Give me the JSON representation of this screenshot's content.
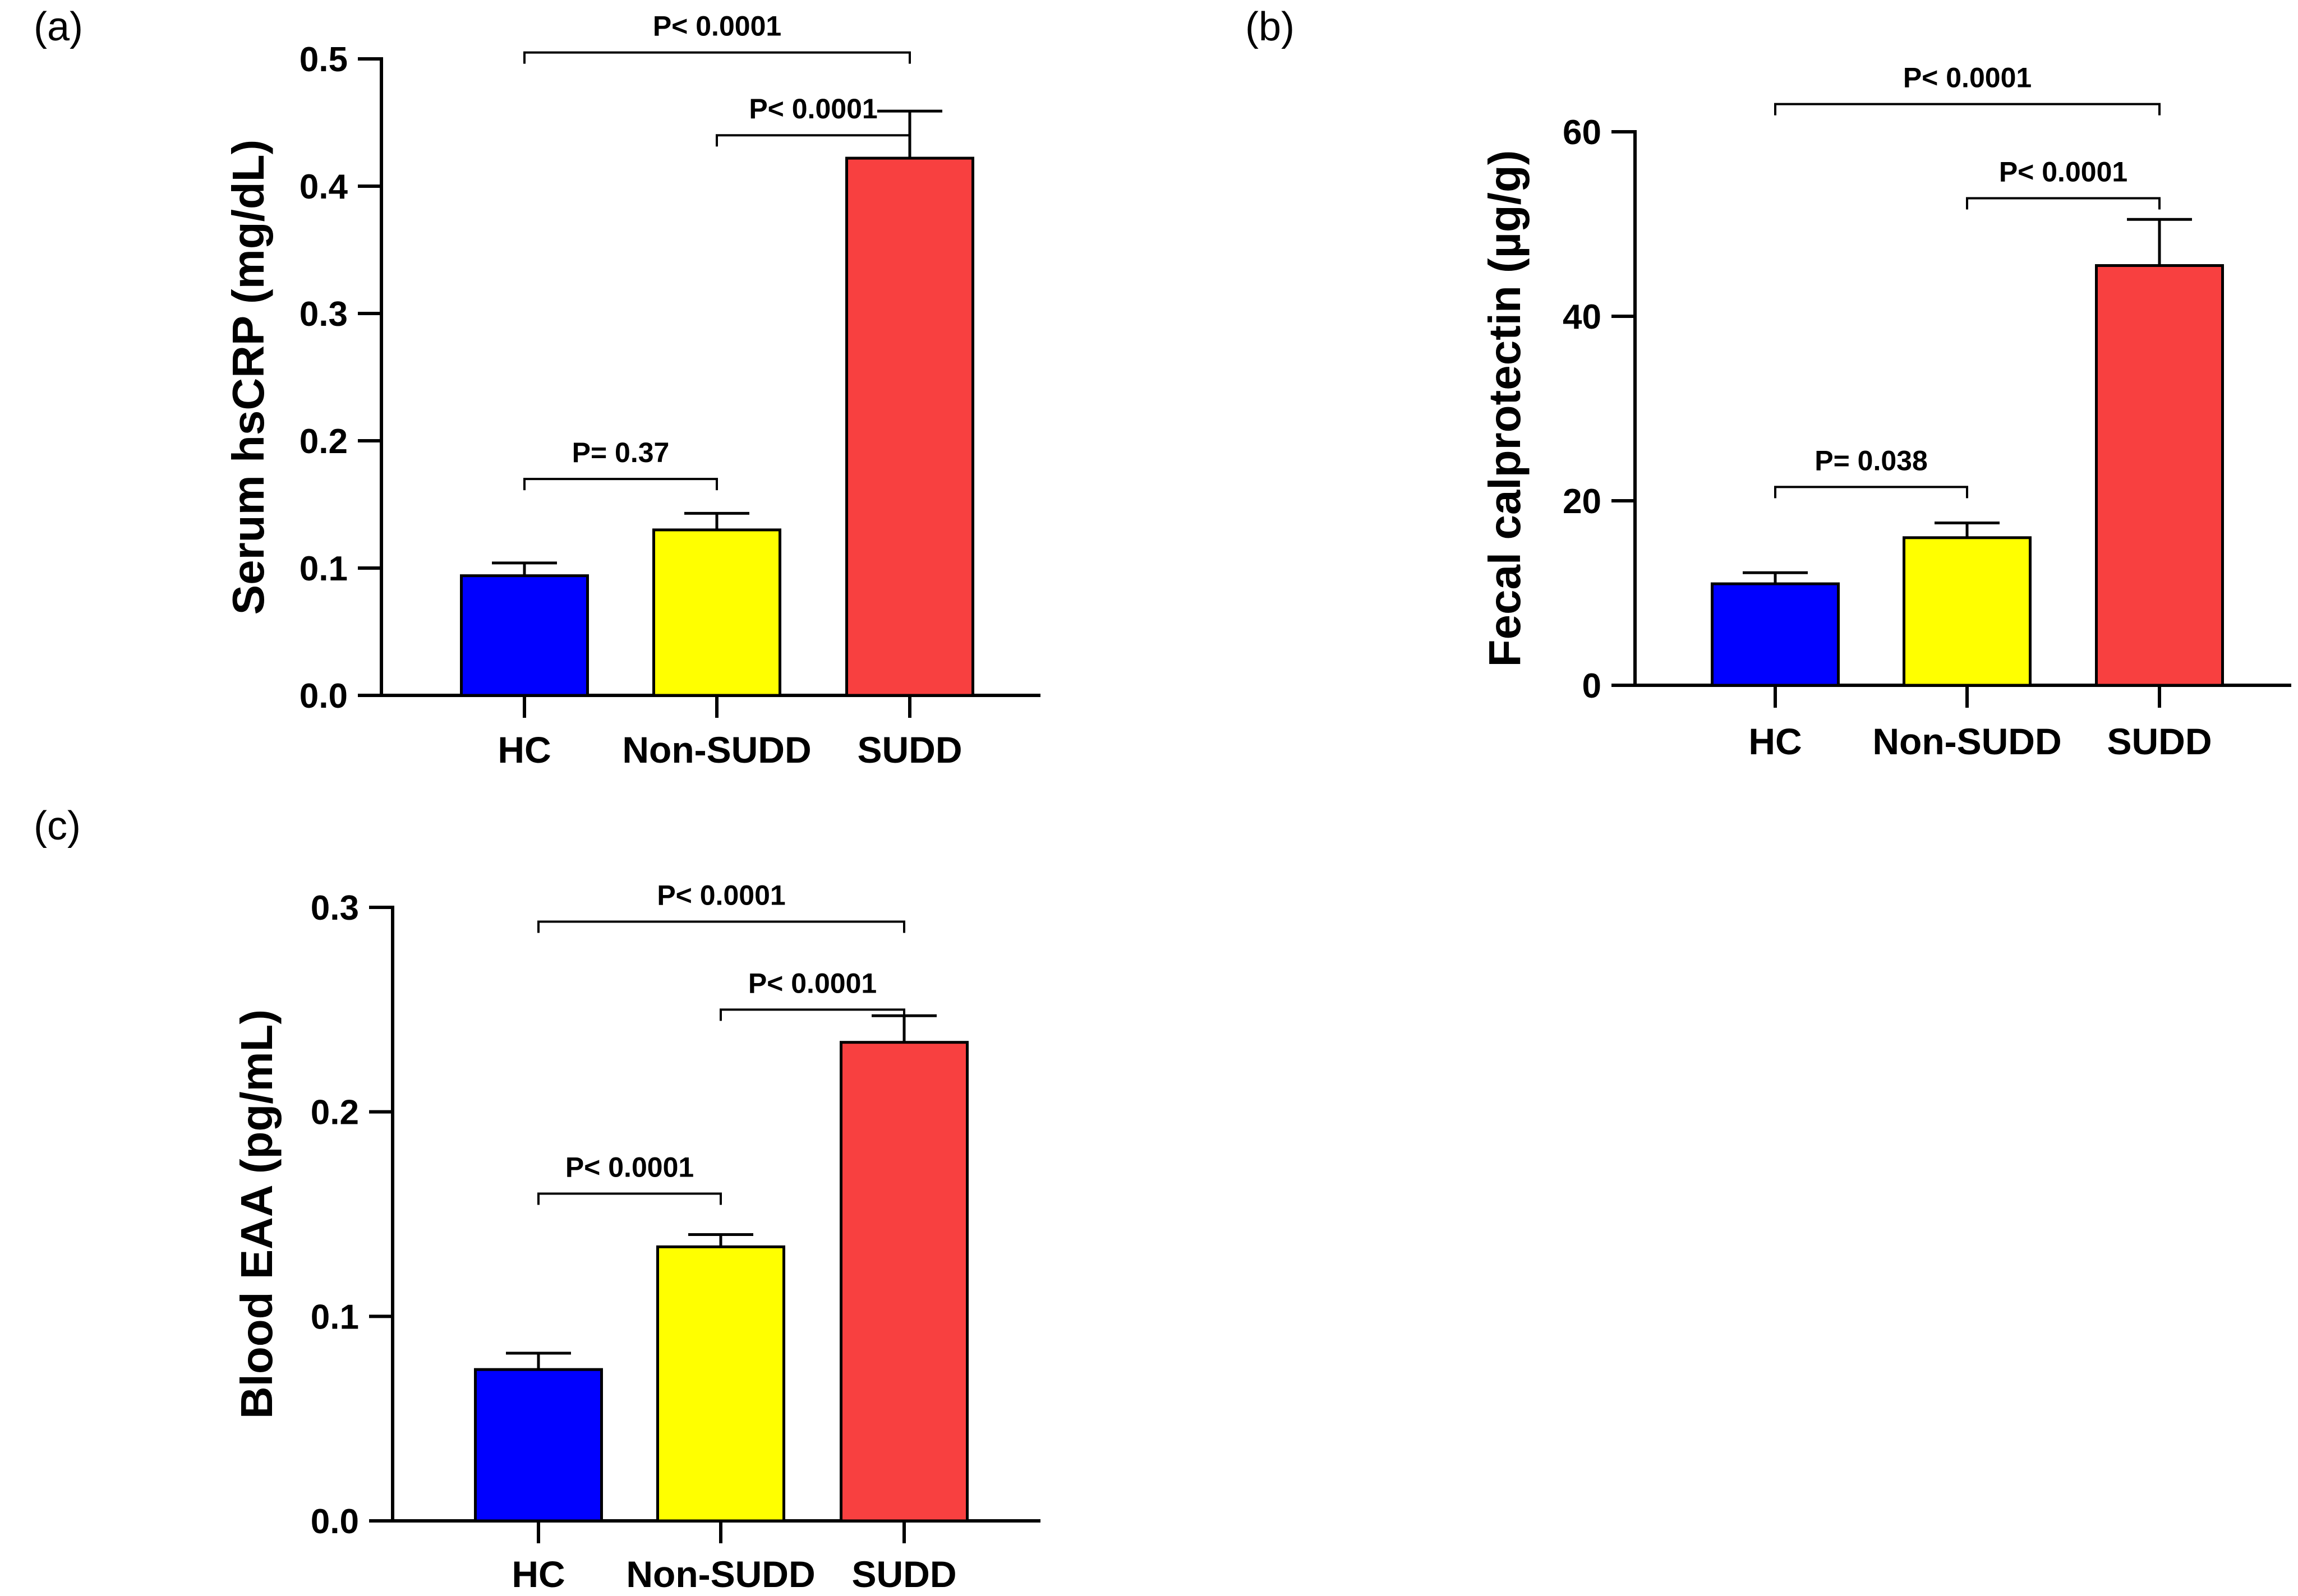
{
  "chart_data": [
    {
      "panel": "(a)",
      "type": "bar",
      "ylabel": "Serum hsCRP (mg/dL)",
      "ylim": [
        0,
        0.5
      ],
      "yticks": [
        0.0,
        0.1,
        0.2,
        0.3,
        0.4,
        0.5
      ],
      "ytick_labels": [
        "0.0",
        "0.1",
        "0.2",
        "0.3",
        "0.4",
        "0.5"
      ],
      "categories": [
        "HC",
        "Non-SUDD",
        "SUDD"
      ],
      "values": [
        0.094,
        0.13,
        0.422
      ],
      "errors": [
        0.01,
        0.013,
        0.037
      ],
      "colors": [
        "#0000ff",
        "#ffff00",
        "#f84040"
      ],
      "comparisons": [
        {
          "from": 0,
          "to": 1,
          "label": "P= 0.37",
          "level": 0.17
        },
        {
          "from": 1,
          "to": 2,
          "label": "P< 0.0001",
          "level": 0.44
        },
        {
          "from": 0,
          "to": 2,
          "label": "P< 0.0001",
          "level": 0.505
        }
      ]
    },
    {
      "panel": "(b)",
      "type": "bar",
      "ylabel": "Fecal calprotectin (µg/g)",
      "ylim": [
        0,
        60
      ],
      "yticks": [
        0,
        20,
        40,
        60
      ],
      "ytick_labels": [
        "0",
        "20",
        "40",
        "60"
      ],
      "categories": [
        "HC",
        "Non-SUDD",
        "SUDD"
      ],
      "values": [
        11.0,
        16.0,
        45.5
      ],
      "errors": [
        1.2,
        1.6,
        5.0
      ],
      "colors": [
        "#0000ff",
        "#ffff00",
        "#f84040"
      ],
      "comparisons": [
        {
          "from": 0,
          "to": 1,
          "label": "P= 0.038",
          "level": 21.5
        },
        {
          "from": 1,
          "to": 2,
          "label": "P< 0.0001",
          "level": 52.8
        },
        {
          "from": 0,
          "to": 2,
          "label": "P< 0.0001",
          "level": 63.0
        }
      ]
    },
    {
      "panel": "(c)",
      "type": "bar",
      "ylabel": "Blood EAA (pg/mL)",
      "ylim": [
        0,
        0.3
      ],
      "yticks": [
        0.0,
        0.1,
        0.2,
        0.3
      ],
      "ytick_labels": [
        "0.0",
        "0.1",
        "0.2",
        "0.3"
      ],
      "categories": [
        "HC",
        "Non-SUDD",
        "SUDD"
      ],
      "values": [
        0.074,
        0.134,
        0.234
      ],
      "errors": [
        0.008,
        0.006,
        0.013
      ],
      "colors": [
        "#0000ff",
        "#ffff00",
        "#f84040"
      ],
      "comparisons": [
        {
          "from": 0,
          "to": 1,
          "label": "P< 0.0001",
          "level": 0.16
        },
        {
          "from": 1,
          "to": 2,
          "label": "P< 0.0001",
          "level": 0.25
        },
        {
          "from": 0,
          "to": 2,
          "label": "P< 0.0001",
          "level": 0.293
        }
      ]
    }
  ]
}
